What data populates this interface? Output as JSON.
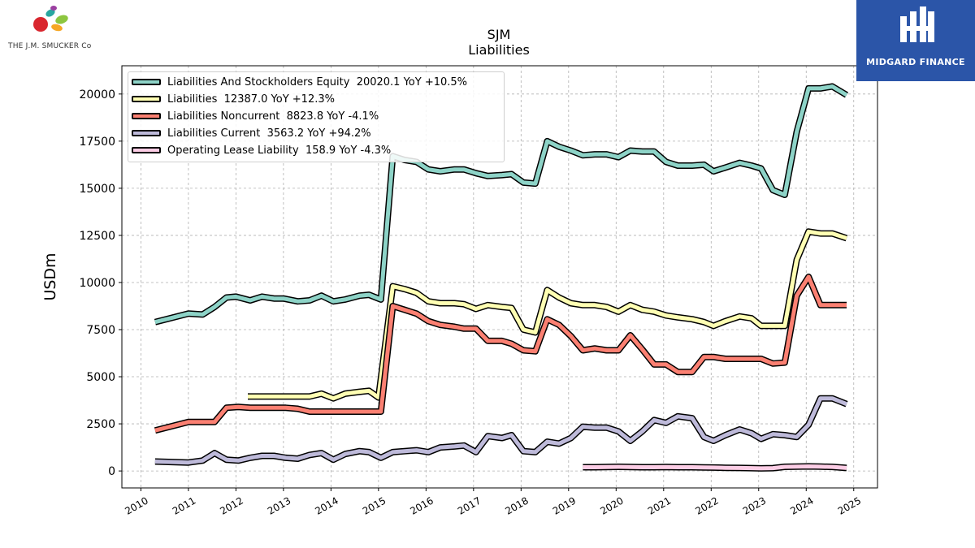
{
  "branding": {
    "company_logo_text": "THE J.M. SMUCKER Co",
    "publisher_text": "MIDGARD FINANCE"
  },
  "colors": {
    "background": "#ffffff",
    "grid": "#b0b0b0",
    "badge": "#2b55a8"
  },
  "chart_data": {
    "type": "line",
    "title": "SJM",
    "subtitle": "Liabilities",
    "ylabel": "USDm",
    "xlabel": "",
    "xlim": [
      2009.6,
      2025.5
    ],
    "ylim": [
      -900,
      21500
    ],
    "yticks": [
      0,
      2500,
      5000,
      7500,
      10000,
      12500,
      15000,
      17500,
      20000
    ],
    "ytick_labels": [
      "0",
      "2500",
      "5000",
      "7500",
      "10000",
      "12500",
      "15000",
      "17500",
      "20000"
    ],
    "xticks": [
      2010,
      2011,
      2012,
      2013,
      2014,
      2015,
      2016,
      2017,
      2018,
      2019,
      2020,
      2021,
      2022,
      2023,
      2024,
      2025
    ],
    "xtick_labels": [
      "2010",
      "2011",
      "2012",
      "2013",
      "2014",
      "2015",
      "2016",
      "2017",
      "2018",
      "2019",
      "2020",
      "2021",
      "2022",
      "2023",
      "2024",
      "2025"
    ],
    "grid": true,
    "legend_position": "top-left",
    "series": [
      {
        "name": "Liabilities And Stockholders Equity",
        "legend": "Liabilities And Stockholders Equity  20020.1 YoY +10.5%",
        "color": "#8dd3c7",
        "x": [
          2010.3,
          2011.0,
          2011.3,
          2011.55,
          2011.8,
          2012.0,
          2012.3,
          2012.55,
          2012.8,
          2013.0,
          2013.3,
          2013.55,
          2013.8,
          2014.05,
          2014.3,
          2014.6,
          2014.8,
          2015.05,
          2015.3,
          2015.55,
          2015.8,
          2016.05,
          2016.3,
          2016.6,
          2016.8,
          2017.05,
          2017.3,
          2017.6,
          2017.8,
          2018.05,
          2018.3,
          2018.55,
          2018.8,
          2019.05,
          2019.3,
          2019.55,
          2019.8,
          2020.05,
          2020.3,
          2020.55,
          2020.8,
          2021.05,
          2021.3,
          2021.6,
          2021.85,
          2022.05,
          2022.3,
          2022.6,
          2022.85,
          2023.05,
          2023.3,
          2023.55,
          2023.8,
          2024.05,
          2024.3,
          2024.55,
          2024.85
        ],
        "y": [
          7900,
          8350,
          8300,
          8700,
          9200,
          9250,
          9050,
          9250,
          9150,
          9150,
          9000,
          9050,
          9300,
          9000,
          9100,
          9300,
          9350,
          9100,
          16700,
          16500,
          16400,
          16000,
          15900,
          16000,
          16000,
          15800,
          15650,
          15700,
          15750,
          15300,
          15250,
          17500,
          17200,
          17000,
          16750,
          16800,
          16800,
          16650,
          17000,
          16950,
          16950,
          16400,
          16200,
          16200,
          16250,
          15900,
          16100,
          16350,
          16200,
          16050,
          14900,
          14650,
          18000,
          20300,
          20300,
          20400,
          19950
        ]
      },
      {
        "name": "Liabilities",
        "legend": "Liabilities  12387.0 YoY +12.3%",
        "color": "#ffffb3",
        "x": [
          2012.25,
          2012.55,
          2012.8,
          2013.0,
          2013.3,
          2013.55,
          2013.8,
          2014.05,
          2014.3,
          2014.6,
          2014.8,
          2015.0,
          2015.3,
          2015.55,
          2015.8,
          2016.05,
          2016.3,
          2016.6,
          2016.8,
          2017.05,
          2017.3,
          2017.6,
          2017.8,
          2018.05,
          2018.3,
          2018.55,
          2018.8,
          2019.05,
          2019.3,
          2019.55,
          2019.8,
          2020.05,
          2020.3,
          2020.55,
          2020.8,
          2021.05,
          2021.3,
          2021.6,
          2021.85,
          2022.05,
          2022.3,
          2022.6,
          2022.85,
          2023.05,
          2023.3,
          2023.55,
          2023.8,
          2024.05,
          2024.3,
          2024.55,
          2024.85
        ],
        "y": [
          3950,
          3950,
          3950,
          3950,
          3950,
          3950,
          4100,
          3850,
          4100,
          4200,
          4250,
          3900,
          9800,
          9650,
          9450,
          9000,
          8900,
          8900,
          8850,
          8600,
          8800,
          8700,
          8650,
          7500,
          7350,
          9600,
          9200,
          8900,
          8800,
          8800,
          8700,
          8450,
          8800,
          8550,
          8450,
          8250,
          8150,
          8050,
          7900,
          7700,
          7950,
          8200,
          8100,
          7700,
          7700,
          7700,
          11200,
          12700,
          12600,
          12600,
          12350
        ]
      },
      {
        "name": "Liabilities Noncurrent",
        "legend": "Liabilities Noncurrent  8823.8 YoY -4.1%",
        "color": "#fb8072",
        "x": [
          2010.3,
          2011.0,
          2011.3,
          2011.55,
          2011.8,
          2012.05,
          2012.3,
          2012.55,
          2012.8,
          2013.05,
          2013.3,
          2013.55,
          2013.8,
          2014.05,
          2014.3,
          2014.6,
          2014.8,
          2015.05,
          2015.3,
          2015.55,
          2015.8,
          2016.05,
          2016.3,
          2016.6,
          2016.8,
          2017.05,
          2017.3,
          2017.6,
          2017.8,
          2018.05,
          2018.3,
          2018.55,
          2018.8,
          2019.05,
          2019.3,
          2019.55,
          2019.8,
          2020.05,
          2020.3,
          2020.55,
          2020.8,
          2021.05,
          2021.3,
          2021.6,
          2021.85,
          2022.05,
          2022.3,
          2022.6,
          2022.85,
          2023.05,
          2023.3,
          2023.55,
          2023.8,
          2024.05,
          2024.3,
          2024.55,
          2024.85
        ],
        "y": [
          2150,
          2600,
          2600,
          2600,
          3350,
          3400,
          3350,
          3350,
          3350,
          3350,
          3300,
          3150,
          3150,
          3150,
          3150,
          3150,
          3150,
          3150,
          8750,
          8550,
          8350,
          7950,
          7750,
          7650,
          7550,
          7550,
          6900,
          6900,
          6750,
          6400,
          6350,
          8050,
          7750,
          7150,
          6400,
          6500,
          6400,
          6400,
          7200,
          6450,
          5650,
          5650,
          5250,
          5250,
          6050,
          6050,
          5950,
          5950,
          5950,
          5950,
          5700,
          5750,
          9300,
          10300,
          8800,
          8800,
          8800
        ]
      },
      {
        "name": "Liabilities Current",
        "legend": "Liabilities Current  3563.2 YoY +94.2%",
        "color": "#bebada",
        "x": [
          2010.3,
          2011.0,
          2011.3,
          2011.55,
          2011.8,
          2012.05,
          2012.3,
          2012.55,
          2012.8,
          2013.05,
          2013.3,
          2013.55,
          2013.8,
          2014.05,
          2014.3,
          2014.6,
          2014.8,
          2015.05,
          2015.3,
          2015.55,
          2015.8,
          2016.05,
          2016.3,
          2016.6,
          2016.8,
          2017.05,
          2017.3,
          2017.6,
          2017.8,
          2018.05,
          2018.3,
          2018.55,
          2018.8,
          2019.05,
          2019.3,
          2019.55,
          2019.8,
          2020.05,
          2020.3,
          2020.55,
          2020.8,
          2021.05,
          2021.3,
          2021.6,
          2021.85,
          2022.05,
          2022.3,
          2022.6,
          2022.85,
          2023.05,
          2023.3,
          2023.55,
          2023.8,
          2024.05,
          2024.3,
          2024.55,
          2024.85
        ],
        "y": [
          500,
          450,
          550,
          950,
          600,
          550,
          700,
          800,
          800,
          700,
          650,
          850,
          950,
          600,
          900,
          1050,
          1000,
          700,
          1000,
          1050,
          1100,
          1000,
          1250,
          1300,
          1350,
          1000,
          1850,
          1750,
          1900,
          1050,
          1000,
          1550,
          1450,
          1750,
          2350,
          2300,
          2300,
          2100,
          1600,
          2100,
          2700,
          2550,
          2900,
          2800,
          1800,
          1600,
          1900,
          2200,
          2000,
          1700,
          1950,
          1900,
          1800,
          2450,
          3850,
          3850,
          3550
        ]
      },
      {
        "name": "Operating Lease Liability",
        "legend": "Operating Lease Liability  158.9 YoY -4.3%",
        "color": "#fccde5",
        "x": [
          2019.3,
          2019.55,
          2019.8,
          2020.05,
          2020.3,
          2020.55,
          2020.8,
          2021.05,
          2021.3,
          2021.6,
          2021.85,
          2022.05,
          2022.3,
          2022.6,
          2022.85,
          2023.05,
          2023.3,
          2023.55,
          2023.8,
          2024.05,
          2024.3,
          2024.55,
          2024.85
        ],
        "y": [
          200,
          200,
          210,
          220,
          210,
          200,
          200,
          210,
          200,
          200,
          190,
          180,
          170,
          160,
          150,
          140,
          150,
          220,
          230,
          240,
          230,
          215,
          160
        ]
      }
    ]
  }
}
